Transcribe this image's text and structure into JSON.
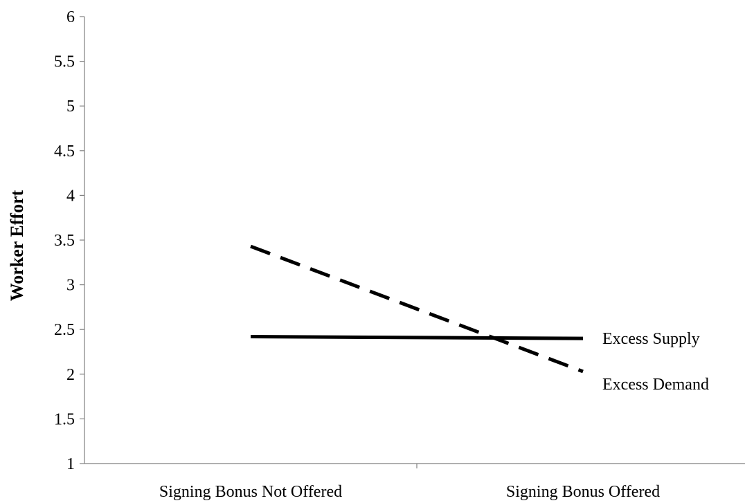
{
  "chart_data": {
    "type": "line",
    "title": "",
    "xlabel": "",
    "ylabel": "Worker Effort",
    "ylim": [
      1,
      6
    ],
    "yticks": [
      1,
      1.5,
      2,
      2.5,
      3,
      3.5,
      4,
      4.5,
      5,
      5.5,
      6
    ],
    "ytick_labels": [
      "1",
      "1.5",
      "2",
      "2.5",
      "3",
      "3.5",
      "4",
      "4.5",
      "5",
      "5.5",
      "6"
    ],
    "grid": false,
    "legend": "none",
    "categories": [
      "Signing Bonus Not Offered",
      "Signing Bonus Offered"
    ],
    "series": [
      {
        "name": "Excess Supply",
        "values": [
          2.42,
          2.4
        ],
        "style": "solid",
        "color": "#000000"
      },
      {
        "name": "Excess Demand",
        "values": [
          3.43,
          2.03
        ],
        "style": "dashed",
        "color": "#000000"
      }
    ]
  }
}
